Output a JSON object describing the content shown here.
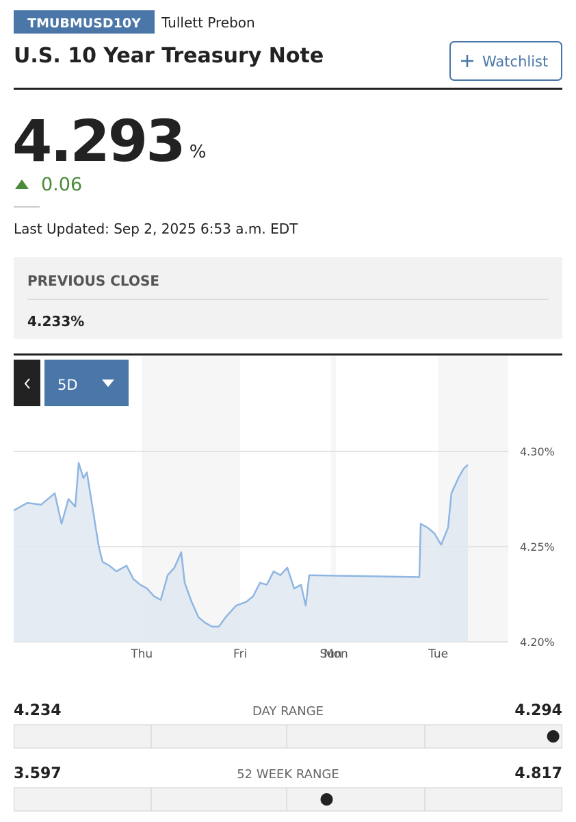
{
  "header": {
    "symbol": "TMUBMUSD10Y",
    "source": "Tullett Prebon",
    "title": "U.S. 10 Year Treasury Note",
    "watchlist_button": "Watchlist"
  },
  "quote": {
    "price": 4.293,
    "unit": "%",
    "change": 0.06,
    "last_updated": "Last Updated: Sep 2, 2025 6:53 a.m. EDT"
  },
  "previous_close": {
    "label": "PREVIOUS CLOSE",
    "value": "4.233%"
  },
  "chart_controls": {
    "period": "5D"
  },
  "chart_data": {
    "type": "area",
    "x": [
      0,
      0.139,
      0.278,
      0.417,
      0.486,
      0.556,
      0.625,
      0.66,
      0.708,
      0.743,
      0.799,
      0.833,
      0.868,
      0.903,
      0.972,
      1.042,
      1.146,
      1.215,
      1.285,
      1.354,
      1.424,
      1.493,
      1.563,
      1.632,
      1.701,
      1.736,
      1.806,
      1.875,
      1.944,
      2.014,
      2.083,
      2.153,
      2.257,
      2.361,
      2.431,
      2.5,
      2.569,
      2.639,
      2.708,
      2.778,
      2.847,
      2.917,
      2.965,
      3.0,
      4.118,
      4.132,
      4.201,
      4.271,
      4.34,
      4.41,
      4.444,
      4.514,
      4.569,
      4.611
    ],
    "values": [
      4.269,
      4.273,
      4.272,
      4.278,
      4.262,
      4.275,
      4.271,
      4.294,
      4.286,
      4.289,
      4.271,
      4.26,
      4.249,
      4.242,
      4.24,
      4.237,
      4.24,
      4.233,
      4.23,
      4.228,
      4.224,
      4.222,
      4.235,
      4.239,
      4.247,
      4.231,
      4.221,
      4.213,
      4.21,
      4.208,
      4.208,
      4.213,
      4.219,
      4.221,
      4.224,
      4.231,
      4.23,
      4.237,
      4.235,
      4.239,
      4.228,
      4.23,
      4.219,
      4.235,
      4.234,
      4.262,
      4.26,
      4.257,
      4.251,
      4.26,
      4.278,
      4.286,
      4.291,
      4.293
    ],
    "color": "#8fb6e2",
    "fill_color": "#dfe8f1",
    "xlim": [
      0,
      5.021
    ],
    "xticks": [
      {
        "value": 1.3,
        "label": "Thu"
      },
      {
        "value": 2.3,
        "label": "Fri"
      },
      {
        "value": 3.22,
        "label": "Sun"
      },
      {
        "value": 3.27,
        "label": "Mon"
      },
      {
        "value": 4.31,
        "label": "Tue"
      }
    ],
    "ylim": [
      4.2,
      4.35
    ],
    "yticks": [
      {
        "value": 4.2,
        "label": "4.20%"
      },
      {
        "value": 4.25,
        "label": "4.25%"
      },
      {
        "value": 4.3,
        "label": "4.30%"
      }
    ],
    "grid": true
  },
  "ranges": [
    {
      "low": 4.234,
      "label": "DAY RANGE",
      "high": 4.294
    },
    {
      "low": 3.597,
      "label": "52 WEEK RANGE",
      "high": 4.817
    }
  ]
}
